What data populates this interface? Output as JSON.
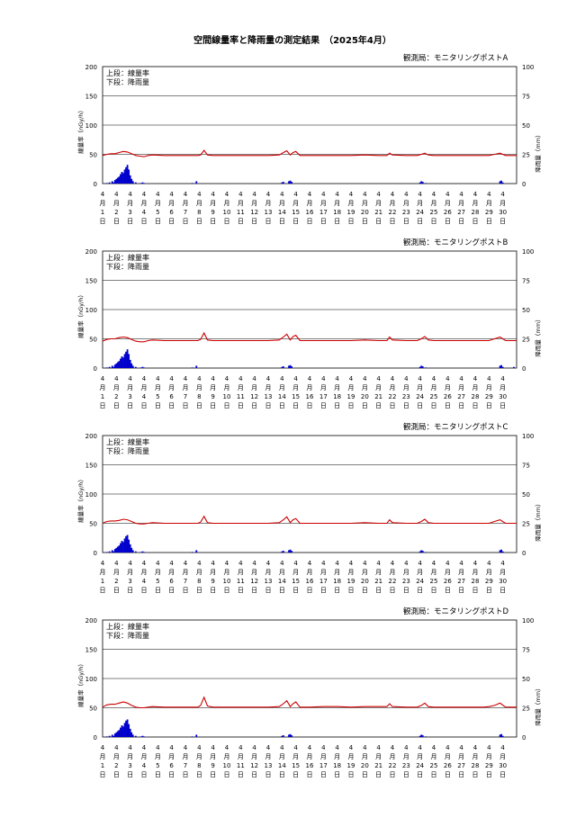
{
  "page": {
    "title": "空間線量率と降雨量の測定結果　（2025年4月）"
  },
  "colors": {
    "dose_line": "#cc0000",
    "rain_bars": "#0000cc",
    "gridline": "#000000"
  },
  "chart_data": [
    {
      "type": "line",
      "station": "観測局：モニタリングポストA",
      "legend": [
        "上段：線量率",
        "下段：降雨量"
      ],
      "ylabel": "線量率（nGy/h）",
      "y2label": "降雨量（mm）",
      "ylim": [
        0,
        200
      ],
      "yticks": [
        0,
        50,
        100,
        150,
        200
      ],
      "y2lim": [
        0,
        100
      ],
      "y2ticks": [
        0,
        25,
        50,
        75,
        100
      ],
      "xlim": [
        0,
        30
      ],
      "x_tick_labels": {
        "month": "4",
        "unit1": "月",
        "unit2": "日",
        "days": [
          1,
          2,
          3,
          4,
          5,
          6,
          7,
          8,
          9,
          10,
          11,
          12,
          13,
          14,
          15,
          16,
          17,
          18,
          19,
          20,
          21,
          22,
          23,
          24,
          25,
          26,
          27,
          28,
          29,
          30
        ]
      },
      "grid": true,
      "series": [
        {
          "x": [
            0,
            0.3,
            0.6,
            0.9,
            1.2,
            1.5,
            1.8,
            2.1,
            2.4,
            2.7,
            3.0,
            3.3,
            3.6,
            4.5,
            5.5,
            6.5,
            6.9,
            7.1,
            7.35,
            7.6,
            8.0,
            9.0,
            10.0,
            11.0,
            12.0,
            12.8,
            13.1,
            13.35,
            13.6,
            13.8,
            14.0,
            14.3,
            15.0,
            16.0,
            17.0,
            18.0,
            19.0,
            20.0,
            20.6,
            20.8,
            21.0,
            22.0,
            22.8,
            23.1,
            23.35,
            23.6,
            24.0,
            25.0,
            26.0,
            27.0,
            27.6,
            28.0,
            28.4,
            28.8,
            29.2,
            30
          ],
          "values": [
            48,
            50,
            51,
            51,
            53,
            55,
            54,
            51,
            48,
            47,
            46,
            48,
            49,
            48,
            48,
            48,
            48,
            49,
            57,
            49,
            48,
            48,
            48,
            48,
            48,
            49,
            53,
            56,
            49,
            53,
            55,
            48,
            48,
            48,
            48,
            48,
            49,
            48,
            48,
            52,
            49,
            48,
            48,
            50,
            52,
            49,
            48,
            48,
            48,
            48,
            48,
            48,
            50,
            52,
            48,
            48
          ]
        }
      ],
      "rain_series": {
        "x": [
          0.3,
          0.5,
          0.7,
          0.8,
          0.9,
          1.0,
          1.1,
          1.2,
          1.3,
          1.4,
          1.5,
          1.6,
          1.7,
          1.8,
          1.9,
          2.0,
          2.1,
          2.2,
          2.4,
          2.8,
          2.9,
          3.0,
          6.5,
          6.8,
          13.0,
          13.1,
          13.5,
          13.6,
          13.7,
          23.0,
          23.1,
          23.2,
          23.4,
          28.8,
          28.9,
          29.0
        ],
        "values": [
          0.5,
          1,
          2,
          1,
          3,
          4,
          5,
          6,
          8,
          10,
          9,
          12,
          14,
          16,
          12,
          7,
          4,
          2,
          1,
          0.5,
          1,
          0.5,
          0.5,
          2,
          1,
          1.5,
          2,
          2.5,
          1.5,
          1,
          2,
          1.5,
          0.5,
          2,
          2.5,
          1
        ]
      }
    },
    {
      "type": "line",
      "station": "観測局：モニタリングポストB",
      "legend": [
        "上段：線量率",
        "下段：降雨量"
      ],
      "ylabel": "線量率（nGy/h）",
      "y2label": "降雨量（mm）",
      "ylim": [
        0,
        200
      ],
      "yticks": [
        0,
        50,
        100,
        150,
        200
      ],
      "y2lim": [
        0,
        100
      ],
      "y2ticks": [
        0,
        25,
        50,
        75,
        100
      ],
      "xlim": [
        0,
        30
      ],
      "x_tick_labels": {
        "month": "4",
        "unit1": "月",
        "unit2": "日",
        "days": [
          1,
          2,
          3,
          4,
          5,
          6,
          7,
          8,
          9,
          10,
          11,
          12,
          13,
          14,
          15,
          16,
          17,
          18,
          19,
          20,
          21,
          22,
          23,
          24,
          25,
          26,
          27,
          28,
          29,
          30
        ]
      },
      "grid": true,
      "series": [
        {
          "x": [
            0,
            0.3,
            0.6,
            0.9,
            1.2,
            1.5,
            1.8,
            2.1,
            2.4,
            2.7,
            3.0,
            3.3,
            3.6,
            4.5,
            5.5,
            6.5,
            6.9,
            7.1,
            7.35,
            7.6,
            8.0,
            9.0,
            10.0,
            11.0,
            12.0,
            12.8,
            13.1,
            13.35,
            13.6,
            13.8,
            14.0,
            14.3,
            15.0,
            16.0,
            17.0,
            18.0,
            19.0,
            20.0,
            20.6,
            20.8,
            21.0,
            22.0,
            22.8,
            23.1,
            23.35,
            23.6,
            24.0,
            25.0,
            26.0,
            27.0,
            27.6,
            28.0,
            28.4,
            28.8,
            29.2,
            30
          ],
          "values": [
            46,
            49,
            50,
            50,
            52,
            53,
            52,
            49,
            46,
            45,
            45,
            47,
            48,
            47,
            47,
            47,
            47,
            49,
            60,
            48,
            47,
            47,
            47,
            47,
            47,
            48,
            53,
            58,
            48,
            54,
            56,
            47,
            47,
            47,
            47,
            47,
            48,
            47,
            47,
            53,
            48,
            47,
            47,
            50,
            54,
            48,
            47,
            47,
            47,
            47,
            47,
            47,
            50,
            53,
            47,
            47
          ]
        }
      ],
      "rain_series": {
        "x": [
          0.3,
          0.5,
          0.7,
          0.8,
          0.9,
          1.0,
          1.1,
          1.2,
          1.3,
          1.4,
          1.5,
          1.6,
          1.7,
          1.8,
          1.9,
          2.0,
          2.1,
          2.2,
          2.4,
          2.8,
          2.9,
          3.0,
          6.5,
          6.8,
          13.0,
          13.1,
          13.5,
          13.6,
          13.7,
          23.0,
          23.1,
          23.2,
          23.4,
          28.8,
          28.9,
          29.0,
          29.8
        ],
        "values": [
          0.5,
          1,
          2,
          1,
          3,
          4,
          5,
          6,
          8,
          10,
          9,
          12,
          14,
          16,
          12,
          7,
          4,
          2,
          1,
          0.5,
          1,
          0.5,
          0.5,
          2,
          1,
          1.5,
          2,
          2.5,
          1.5,
          1,
          2,
          1.5,
          0.5,
          2,
          2.5,
          1,
          1
        ]
      }
    },
    {
      "type": "line",
      "station": "観測局：モニタリングポストC",
      "legend": [
        "上段：線量率",
        "下段：降雨量"
      ],
      "ylabel": "線量率（nGy/h）",
      "y2label": "降雨量（mm）",
      "ylim": [
        0,
        200
      ],
      "yticks": [
        0,
        50,
        100,
        150,
        200
      ],
      "y2lim": [
        0,
        100
      ],
      "y2ticks": [
        0,
        25,
        50,
        75,
        100
      ],
      "xlim": [
        0,
        30
      ],
      "x_tick_labels": {
        "month": "4",
        "unit1": "月",
        "unit2": "日",
        "days": [
          1,
          2,
          3,
          4,
          5,
          6,
          7,
          8,
          9,
          10,
          11,
          12,
          13,
          14,
          15,
          16,
          17,
          18,
          19,
          20,
          21,
          22,
          23,
          24,
          25,
          26,
          27,
          28,
          29,
          30
        ]
      },
      "grid": true,
      "series": [
        {
          "x": [
            0,
            0.3,
            0.6,
            0.9,
            1.2,
            1.5,
            1.8,
            2.1,
            2.4,
            2.7,
            3.0,
            3.3,
            3.6,
            4.5,
            5.5,
            6.5,
            6.9,
            7.1,
            7.35,
            7.6,
            8.0,
            9.0,
            10.0,
            11.0,
            12.0,
            12.8,
            13.1,
            13.35,
            13.6,
            13.8,
            14.0,
            14.3,
            15.0,
            16.0,
            17.0,
            18.0,
            19.0,
            20.0,
            20.6,
            20.8,
            21.0,
            22.0,
            22.8,
            23.1,
            23.35,
            23.6,
            24.0,
            25.0,
            26.0,
            27.0,
            27.6,
            28.0,
            28.4,
            28.8,
            29.2,
            30
          ],
          "values": [
            50,
            53,
            54,
            54,
            55,
            57,
            56,
            53,
            50,
            49,
            49,
            50,
            51,
            50,
            50,
            50,
            50,
            52,
            62,
            51,
            50,
            50,
            50,
            50,
            50,
            51,
            56,
            61,
            51,
            56,
            58,
            50,
            50,
            50,
            50,
            50,
            51,
            50,
            50,
            56,
            51,
            50,
            50,
            53,
            57,
            51,
            50,
            50,
            50,
            50,
            50,
            50,
            53,
            56,
            50,
            50
          ]
        }
      ],
      "rain_series": {
        "x": [
          0.3,
          0.5,
          0.7,
          0.8,
          0.9,
          1.0,
          1.1,
          1.2,
          1.3,
          1.4,
          1.5,
          1.6,
          1.7,
          1.8,
          1.9,
          2.0,
          2.1,
          2.2,
          2.4,
          2.8,
          2.9,
          3.0,
          6.5,
          6.8,
          13.0,
          13.1,
          13.5,
          13.6,
          13.7,
          23.0,
          23.1,
          23.2,
          23.4,
          28.8,
          28.9,
          29.0
        ],
        "values": [
          0.5,
          1,
          2,
          1,
          3,
          4,
          5,
          6,
          8,
          10,
          9,
          12,
          14,
          15,
          11,
          7,
          4,
          2,
          1,
          0.5,
          1,
          0.5,
          0.5,
          2,
          1,
          1.5,
          2,
          2.5,
          1.5,
          1,
          2,
          1.5,
          0.5,
          2,
          2.5,
          1
        ]
      }
    },
    {
      "type": "line",
      "station": "観測局：モニタリングポストD",
      "legend": [
        "上段：線量率",
        "下段：降雨量"
      ],
      "ylabel": "線量率（nGy/h）",
      "y2label": "降雨量（mm）",
      "ylim": [
        0,
        200
      ],
      "yticks": [
        0,
        50,
        100,
        150,
        200
      ],
      "y2lim": [
        0,
        100
      ],
      "y2ticks": [
        0,
        25,
        50,
        75,
        100
      ],
      "xlim": [
        0,
        30
      ],
      "x_tick_labels": {
        "month": "4",
        "unit1": "月",
        "unit2": "日",
        "days": [
          1,
          2,
          3,
          4,
          5,
          6,
          7,
          8,
          9,
          10,
          11,
          12,
          13,
          14,
          15,
          16,
          17,
          18,
          19,
          20,
          21,
          22,
          23,
          24,
          25,
          26,
          27,
          28,
          29,
          30
        ]
      },
      "grid": true,
      "series": [
        {
          "x": [
            0,
            0.3,
            0.6,
            0.9,
            1.2,
            1.5,
            1.8,
            2.1,
            2.4,
            2.7,
            3.0,
            3.3,
            3.6,
            4.5,
            5.5,
            6.5,
            6.9,
            7.1,
            7.35,
            7.6,
            8.0,
            9.0,
            10.0,
            11.0,
            12.0,
            12.8,
            13.1,
            13.35,
            13.6,
            13.8,
            14.0,
            14.3,
            15.0,
            16.0,
            17.0,
            18.0,
            19.0,
            20.0,
            20.6,
            20.8,
            21.0,
            22.0,
            22.8,
            23.1,
            23.35,
            23.6,
            24.0,
            25.0,
            26.0,
            27.0,
            27.6,
            28.0,
            28.4,
            28.8,
            29.2,
            30
          ],
          "values": [
            51,
            55,
            56,
            56,
            58,
            60,
            58,
            54,
            51,
            50,
            50,
            51,
            52,
            51,
            51,
            51,
            51,
            54,
            68,
            53,
            51,
            51,
            51,
            51,
            51,
            52,
            57,
            62,
            52,
            57,
            60,
            51,
            51,
            52,
            52,
            51,
            52,
            52,
            52,
            57,
            52,
            51,
            51,
            54,
            58,
            52,
            51,
            51,
            51,
            51,
            51,
            52,
            54,
            58,
            51,
            51
          ]
        }
      ],
      "rain_series": {
        "x": [
          0.3,
          0.5,
          0.7,
          0.8,
          0.9,
          1.0,
          1.1,
          1.2,
          1.3,
          1.4,
          1.5,
          1.6,
          1.7,
          1.8,
          1.9,
          2.0,
          2.1,
          2.2,
          2.4,
          2.8,
          2.9,
          3.0,
          6.5,
          6.8,
          13.0,
          13.1,
          13.5,
          13.6,
          13.7,
          23.0,
          23.1,
          23.2,
          23.4,
          28.8,
          28.9,
          29.0
        ],
        "values": [
          0.5,
          1,
          2,
          1,
          3,
          4,
          5,
          6,
          8,
          10,
          9,
          12,
          14,
          15,
          11,
          7,
          4,
          2,
          1,
          0.5,
          1,
          0.5,
          0.5,
          2,
          1,
          1.5,
          2,
          2.5,
          1.5,
          1,
          2,
          1.5,
          0.5,
          2,
          2.5,
          1
        ]
      }
    }
  ]
}
